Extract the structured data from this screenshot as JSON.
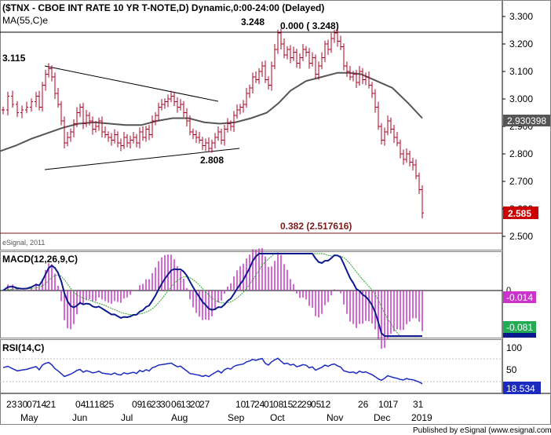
{
  "header": {
    "title": "($TNX - CBOE INT RATE 10 YR T-NOTE,D) Dynamic,0:00-24:00 (Delayed)",
    "ma_label": "MA(55,C)e",
    "copyright": "eSignal, 2011"
  },
  "annotations": {
    "high_label": "3.248",
    "fib_top": "0.000 ( 3.248)",
    "fib_382": "0.382 (2.517616)",
    "left_label": "3.115",
    "low_label": "2.808"
  },
  "price_axis": {
    "ticks": [
      "3.300",
      "3.200",
      "3.100",
      "3.000",
      "2.900",
      "2.800",
      "2.700",
      "2.600",
      "2.500"
    ],
    "ma_badge": "2.930398",
    "last_badge": "2.585"
  },
  "macd": {
    "label": "MACD(12,26,9,C)",
    "zero_label": "0",
    "hist_badge": "-0.014",
    "signal_badge": "-0.081"
  },
  "rsi": {
    "label": "RSI(14,C)",
    "ticks": [
      "100",
      "50",
      "0"
    ],
    "badge": "18.534"
  },
  "x_axis": {
    "days": [
      "23",
      "30",
      "07",
      "14",
      "21",
      "04",
      "11",
      "18",
      "25",
      "09",
      "16",
      "23",
      "30",
      "06",
      "13",
      "20",
      "27",
      "10",
      "17",
      "24",
      "01",
      "08",
      "15",
      "22",
      "29",
      "05",
      "12",
      "26",
      "10",
      "17",
      "31"
    ],
    "months": [
      "May",
      "Jun",
      "Jul",
      "Aug",
      "Sep",
      "Oct",
      "Nov",
      "Dec",
      "2019"
    ]
  },
  "footer": {
    "published": "Published by eSignal (www.esignal.com)"
  },
  "colors": {
    "candle": "#b00020",
    "ma": "#555555",
    "macd_line": "#0a1a8c",
    "signal_line": "#30a030",
    "histogram": "#cc33cc",
    "rsi_line": "#1a2bbd",
    "last_badge": "#cc0000",
    "hist_badge": "#cc33cc",
    "signal_badge": "#22aa55",
    "rsi_badge": "#1a2bbd",
    "ma_badge": "#555555"
  },
  "chart_data": {
    "type": "line",
    "title": "($TNX - CBOE INT RATE 10 YR T-NOTE,D) Dynamic,0:00-24:00 (Delayed)",
    "ylim": [
      2.45,
      3.35
    ],
    "series": [
      {
        "name": "MA(55,C)e",
        "points": [
          [
            0,
            2.81
          ],
          [
            20,
            2.83
          ],
          [
            40,
            2.855
          ],
          [
            60,
            2.875
          ],
          [
            80,
            2.895
          ],
          [
            100,
            2.91
          ],
          [
            120,
            2.915
          ],
          [
            140,
            2.91
          ],
          [
            160,
            2.905
          ],
          [
            180,
            2.905
          ],
          [
            200,
            2.92
          ],
          [
            220,
            2.93
          ],
          [
            240,
            2.93
          ],
          [
            260,
            2.915
          ],
          [
            280,
            2.91
          ],
          [
            300,
            2.915
          ],
          [
            320,
            2.93
          ],
          [
            340,
            2.95
          ],
          [
            355,
            2.985
          ],
          [
            370,
            3.03
          ],
          [
            390,
            3.065
          ],
          [
            410,
            3.08
          ],
          [
            430,
            3.095
          ],
          [
            445,
            3.095
          ],
          [
            460,
            3.09
          ],
          [
            480,
            3.065
          ],
          [
            500,
            3.04
          ],
          [
            520,
            2.985
          ],
          [
            538,
            2.93
          ]
        ]
      },
      {
        "name": "$TNX",
        "points": [
          [
            4,
            2.96
          ],
          [
            10,
            3.01
          ],
          [
            16,
            2.98
          ],
          [
            22,
            2.95
          ],
          [
            28,
            2.96
          ],
          [
            34,
            2.97
          ],
          [
            40,
            2.99
          ],
          [
            46,
            3.01
          ],
          [
            50,
            2.97
          ],
          [
            54,
            3.05
          ],
          [
            58,
            3.09
          ],
          [
            62,
            3.11
          ],
          [
            66,
            3.08
          ],
          [
            70,
            3.02
          ],
          [
            74,
            2.98
          ],
          [
            78,
            2.92
          ],
          [
            82,
            2.84
          ],
          [
            86,
            2.86
          ],
          [
            90,
            2.88
          ],
          [
            94,
            2.91
          ],
          [
            98,
            2.95
          ],
          [
            102,
            2.97
          ],
          [
            106,
            2.91
          ],
          [
            110,
            2.94
          ],
          [
            114,
            2.92
          ],
          [
            118,
            2.89
          ],
          [
            122,
            2.9
          ],
          [
            126,
            2.92
          ],
          [
            130,
            2.88
          ],
          [
            134,
            2.87
          ],
          [
            138,
            2.86
          ],
          [
            142,
            2.85
          ],
          [
            146,
            2.87
          ],
          [
            150,
            2.84
          ],
          [
            154,
            2.83
          ],
          [
            158,
            2.86
          ],
          [
            162,
            2.84
          ],
          [
            166,
            2.85
          ],
          [
            170,
            2.86
          ],
          [
            174,
            2.84
          ],
          [
            178,
            2.88
          ],
          [
            182,
            2.86
          ],
          [
            186,
            2.89
          ],
          [
            190,
            2.87
          ],
          [
            194,
            2.92
          ],
          [
            198,
            2.94
          ],
          [
            202,
            2.97
          ],
          [
            206,
            2.98
          ],
          [
            210,
            2.99
          ],
          [
            214,
            3.0
          ],
          [
            218,
            3.01
          ],
          [
            222,
            2.99
          ],
          [
            226,
            2.97
          ],
          [
            230,
            2.98
          ],
          [
            234,
            2.95
          ],
          [
            238,
            2.92
          ],
          [
            242,
            2.88
          ],
          [
            246,
            2.87
          ],
          [
            250,
            2.86
          ],
          [
            254,
            2.85
          ],
          [
            258,
            2.83
          ],
          [
            262,
            2.84
          ],
          [
            266,
            2.82
          ],
          [
            270,
            2.84
          ],
          [
            274,
            2.86
          ],
          [
            278,
            2.88
          ],
          [
            282,
            2.85
          ],
          [
            286,
            2.89
          ],
          [
            290,
            2.91
          ],
          [
            294,
            2.9
          ],
          [
            298,
            2.94
          ],
          [
            302,
            2.96
          ],
          [
            306,
            2.97
          ],
          [
            310,
            2.98
          ],
          [
            314,
            3.02
          ],
          [
            318,
            3.04
          ],
          [
            322,
            3.08
          ],
          [
            326,
            3.07
          ],
          [
            330,
            3.1
          ],
          [
            334,
            3.12
          ],
          [
            338,
            3.07
          ],
          [
            342,
            3.05
          ],
          [
            346,
            3.12
          ],
          [
            350,
            3.18
          ],
          [
            354,
            3.24
          ],
          [
            358,
            3.2
          ],
          [
            362,
            3.16
          ],
          [
            366,
            3.18
          ],
          [
            370,
            3.15
          ],
          [
            374,
            3.17
          ],
          [
            378,
            3.13
          ],
          [
            382,
            3.15
          ],
          [
            386,
            3.18
          ],
          [
            390,
            3.17
          ],
          [
            394,
            3.13
          ],
          [
            398,
            3.15
          ],
          [
            402,
            3.09
          ],
          [
            406,
            3.12
          ],
          [
            410,
            3.15
          ],
          [
            414,
            3.2
          ],
          [
            418,
            3.18
          ],
          [
            422,
            3.22
          ],
          [
            426,
            3.24
          ],
          [
            430,
            3.21
          ],
          [
            434,
            3.19
          ],
          [
            438,
            3.12
          ],
          [
            442,
            3.1
          ],
          [
            446,
            3.08
          ],
          [
            450,
            3.09
          ],
          [
            454,
            3.06
          ],
          [
            458,
            3.1
          ],
          [
            462,
            3.07
          ],
          [
            466,
            3.08
          ],
          [
            470,
            3.05
          ],
          [
            474,
            3.02
          ],
          [
            478,
            2.97
          ],
          [
            482,
            2.9
          ],
          [
            486,
            2.85
          ],
          [
            490,
            2.88
          ],
          [
            494,
            2.92
          ],
          [
            498,
            2.89
          ],
          [
            502,
            2.86
          ],
          [
            506,
            2.84
          ],
          [
            510,
            2.8
          ],
          [
            514,
            2.78
          ],
          [
            518,
            2.8
          ],
          [
            522,
            2.77
          ],
          [
            526,
            2.76
          ],
          [
            530,
            2.72
          ],
          [
            534,
            2.67
          ],
          [
            538,
            2.585
          ]
        ]
      }
    ],
    "trendlines": [
      {
        "from": [
          57,
          3.125
        ],
        "to": [
          278,
          2.995
        ]
      },
      {
        "from": [
          57,
          2.74
        ],
        "to": [
          305,
          2.82
        ]
      },
      {
        "from": [
          0,
          3.248
        ],
        "to": [
          640,
          3.248
        ]
      },
      {
        "from": [
          0,
          2.517616
        ],
        "to": [
          640,
          2.517616
        ]
      }
    ]
  }
}
